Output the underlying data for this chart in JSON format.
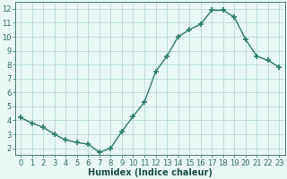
{
  "x": [
    0,
    1,
    2,
    3,
    4,
    5,
    6,
    7,
    8,
    9,
    10,
    11,
    12,
    13,
    14,
    15,
    16,
    17,
    18,
    19,
    20,
    21,
    22,
    23
  ],
  "y": [
    4.2,
    3.8,
    3.5,
    3.0,
    2.6,
    2.4,
    2.3,
    1.7,
    2.0,
    3.2,
    4.3,
    5.3,
    7.5,
    8.6,
    10.0,
    10.5,
    10.9,
    11.9,
    11.9,
    11.4,
    9.8,
    8.6,
    8.3,
    7.8
  ],
  "line_color": "#2e7d6e",
  "marker": "+",
  "marker_size": 4,
  "marker_lw": 1.2,
  "bg_color": "#e8f8f5",
  "grid_color": "#b8ddd5",
  "xlabel": "Humidex (Indice chaleur)",
  "xlim": [
    -0.5,
    23.5
  ],
  "ylim": [
    1.5,
    12.5
  ],
  "yticks": [
    2,
    3,
    4,
    5,
    6,
    7,
    8,
    9,
    10,
    11,
    12
  ],
  "xticks": [
    0,
    1,
    2,
    3,
    4,
    5,
    6,
    7,
    8,
    9,
    10,
    11,
    12,
    13,
    14,
    15,
    16,
    17,
    18,
    19,
    20,
    21,
    22,
    23
  ],
  "tick_color": "#2e6e5e",
  "label_color": "#1a5045",
  "tick_fontsize": 6,
  "xlabel_fontsize": 7,
  "line_width": 1.0
}
